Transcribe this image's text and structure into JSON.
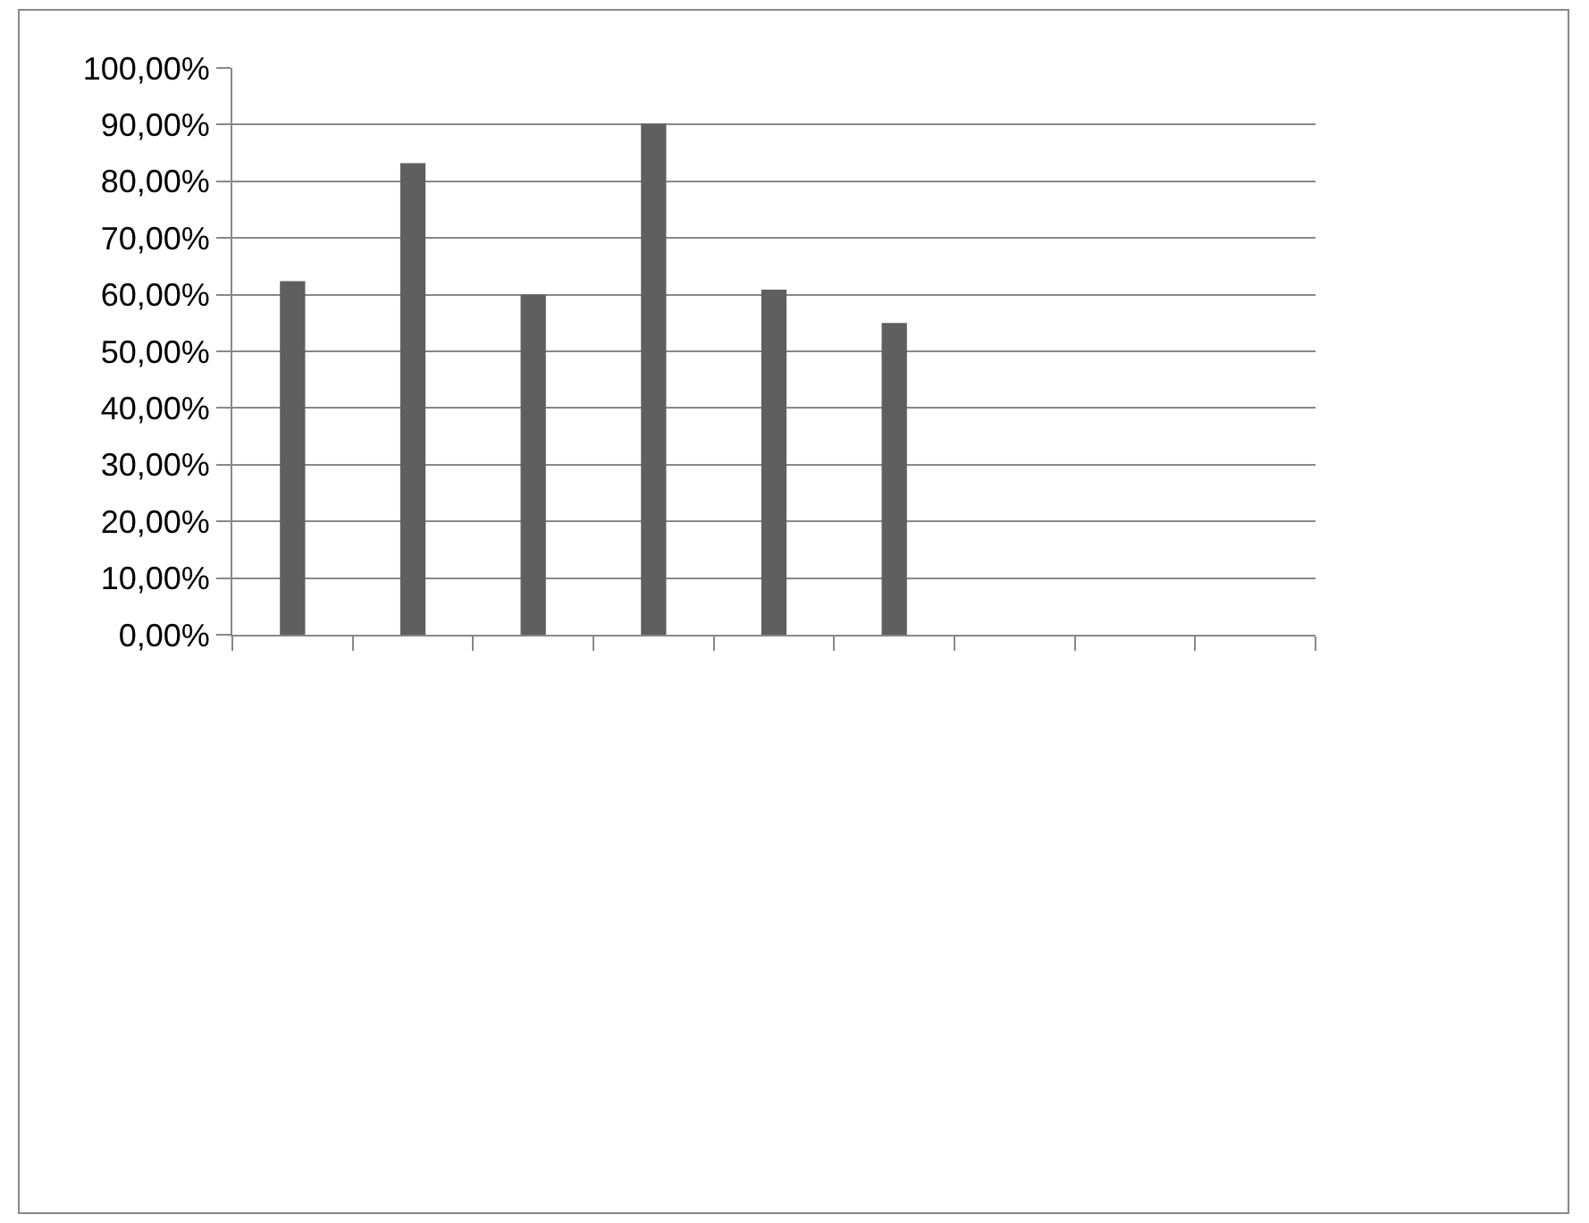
{
  "chart_data": {
    "type": "bar",
    "categories": [
      null,
      null,
      null,
      null,
      null,
      null,
      null,
      null,
      null
    ],
    "values": [
      62.4,
      83.2,
      60,
      90.2,
      60.9,
      55,
      null,
      null,
      null
    ],
    "color": "#5f5f5f",
    "ylim": [
      0,
      100
    ],
    "yticks": [
      {
        "value": 0,
        "label": "0,00%"
      },
      {
        "value": 10,
        "label": "10,00%"
      },
      {
        "value": 20,
        "label": "20,00%"
      },
      {
        "value": 30,
        "label": "30,00%"
      },
      {
        "value": 40,
        "label": "40,00%"
      },
      {
        "value": 50,
        "label": "50,00%"
      },
      {
        "value": 60,
        "label": "60,00%"
      },
      {
        "value": 70,
        "label": "70,00%"
      },
      {
        "value": 80,
        "label": "80,00%"
      },
      {
        "value": 90,
        "label": "90,00%"
      },
      {
        "value": 100,
        "label": "100,00%"
      }
    ],
    "grid": "y",
    "legend": false
  }
}
